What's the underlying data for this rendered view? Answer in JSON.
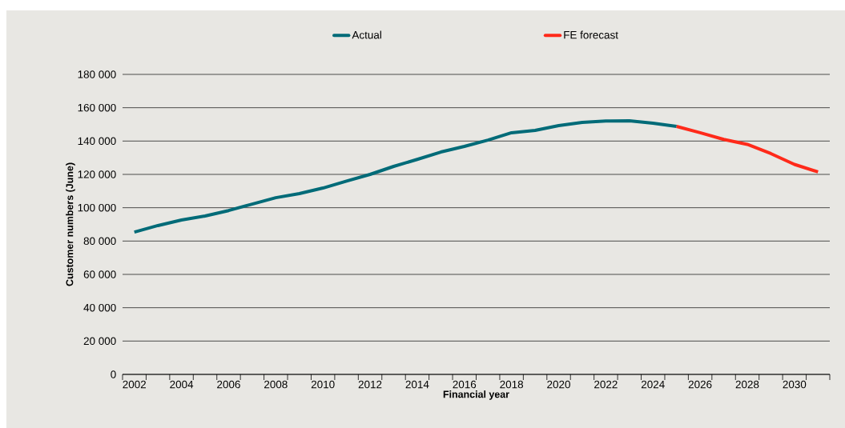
{
  "chart_data": {
    "type": "line",
    "xlabel": "Financial year",
    "ylabel": "Customer numbers (June)",
    "categories": [
      "2002",
      null,
      "2004",
      null,
      "2006",
      null,
      "2008",
      null,
      "2010",
      null,
      "2012",
      null,
      "2014",
      null,
      "2016",
      null,
      "2018",
      null,
      "2020",
      null,
      "2022",
      null,
      "2024",
      null,
      "2026",
      null,
      "2028",
      null,
      "2030",
      null
    ],
    "series": [
      {
        "name": "Actual",
        "color": "#006b78",
        "values": [
          85400,
          89300,
          92600,
          95000,
          98300,
          102200,
          106000,
          108500,
          111800,
          116000,
          120000,
          124800,
          129000,
          133400,
          136800,
          140600,
          145000,
          146400,
          149300,
          151200,
          152000,
          152200,
          150700,
          148800,
          null,
          null,
          null,
          null,
          null,
          null
        ]
      },
      {
        "name": "FE forecast",
        "color": "#ff2a1a",
        "values": [
          null,
          null,
          null,
          null,
          null,
          null,
          null,
          null,
          null,
          null,
          null,
          null,
          null,
          null,
          null,
          null,
          null,
          null,
          null,
          null,
          null,
          null,
          null,
          148800,
          145000,
          141000,
          138000,
          132500,
          126000,
          121500
        ]
      }
    ],
    "ylim": [
      0,
      180000
    ],
    "yticks": [
      {
        "value": 0,
        "label": "0"
      },
      {
        "value": 20000,
        "label": "20 000"
      },
      {
        "value": 40000,
        "label": "40 000"
      },
      {
        "value": 60000,
        "label": "60 000"
      },
      {
        "value": 80000,
        "label": "80 000"
      },
      {
        "value": 100000,
        "label": "100 000"
      },
      {
        "value": 120000,
        "label": "120 000"
      },
      {
        "value": 140000,
        "label": "140 000"
      },
      {
        "value": 160000,
        "label": "160 000"
      },
      {
        "value": 180000,
        "label": "180 000"
      }
    ],
    "grid": "y",
    "legend": "top",
    "marker": "none",
    "line_style": "solid"
  }
}
